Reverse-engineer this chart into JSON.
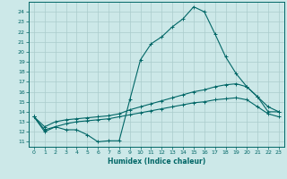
{
  "xlabel": "Humidex (Indice chaleur)",
  "bg_color": "#cce8e8",
  "grid_color": "#aacccc",
  "line_color": "#006666",
  "xlim": [
    -0.5,
    23.5
  ],
  "ylim": [
    10.5,
    25.0
  ],
  "xticks": [
    0,
    1,
    2,
    3,
    4,
    5,
    6,
    7,
    8,
    9,
    10,
    11,
    12,
    13,
    14,
    15,
    16,
    17,
    18,
    19,
    20,
    21,
    22,
    23
  ],
  "yticks": [
    11,
    12,
    13,
    14,
    15,
    16,
    17,
    18,
    19,
    20,
    21,
    22,
    23,
    24
  ],
  "line1_x": [
    0,
    1,
    2,
    3,
    4,
    5,
    6,
    7,
    8,
    9,
    10,
    11,
    12,
    13,
    14,
    15,
    16,
    17,
    18,
    19,
    20,
    21,
    22,
    23
  ],
  "line1_y": [
    13.5,
    12.0,
    12.5,
    12.2,
    12.2,
    11.7,
    11.0,
    11.1,
    11.1,
    15.2,
    19.2,
    20.8,
    21.5,
    22.5,
    23.3,
    24.5,
    24.0,
    21.8,
    19.5,
    17.8,
    16.5,
    15.5,
    14.0,
    14.0
  ],
  "line2_x": [
    0,
    1,
    2,
    3,
    4,
    5,
    6,
    7,
    8,
    9,
    10,
    11,
    12,
    13,
    14,
    15,
    16,
    17,
    18,
    19,
    20,
    21,
    22,
    23
  ],
  "line2_y": [
    13.5,
    12.5,
    13.0,
    13.2,
    13.3,
    13.4,
    13.5,
    13.6,
    13.8,
    14.2,
    14.5,
    14.8,
    15.1,
    15.4,
    15.7,
    16.0,
    16.2,
    16.5,
    16.7,
    16.8,
    16.5,
    15.5,
    14.5,
    14.0
  ],
  "line3_x": [
    0,
    1,
    2,
    3,
    4,
    5,
    6,
    7,
    8,
    9,
    10,
    11,
    12,
    13,
    14,
    15,
    16,
    17,
    18,
    19,
    20,
    21,
    22,
    23
  ],
  "line3_y": [
    13.5,
    12.2,
    12.5,
    12.8,
    13.0,
    13.1,
    13.2,
    13.3,
    13.5,
    13.7,
    13.9,
    14.1,
    14.3,
    14.5,
    14.7,
    14.9,
    15.0,
    15.2,
    15.3,
    15.4,
    15.2,
    14.5,
    13.8,
    13.5
  ],
  "marker": "+",
  "markersize": 3,
  "linewidth": 0.8
}
